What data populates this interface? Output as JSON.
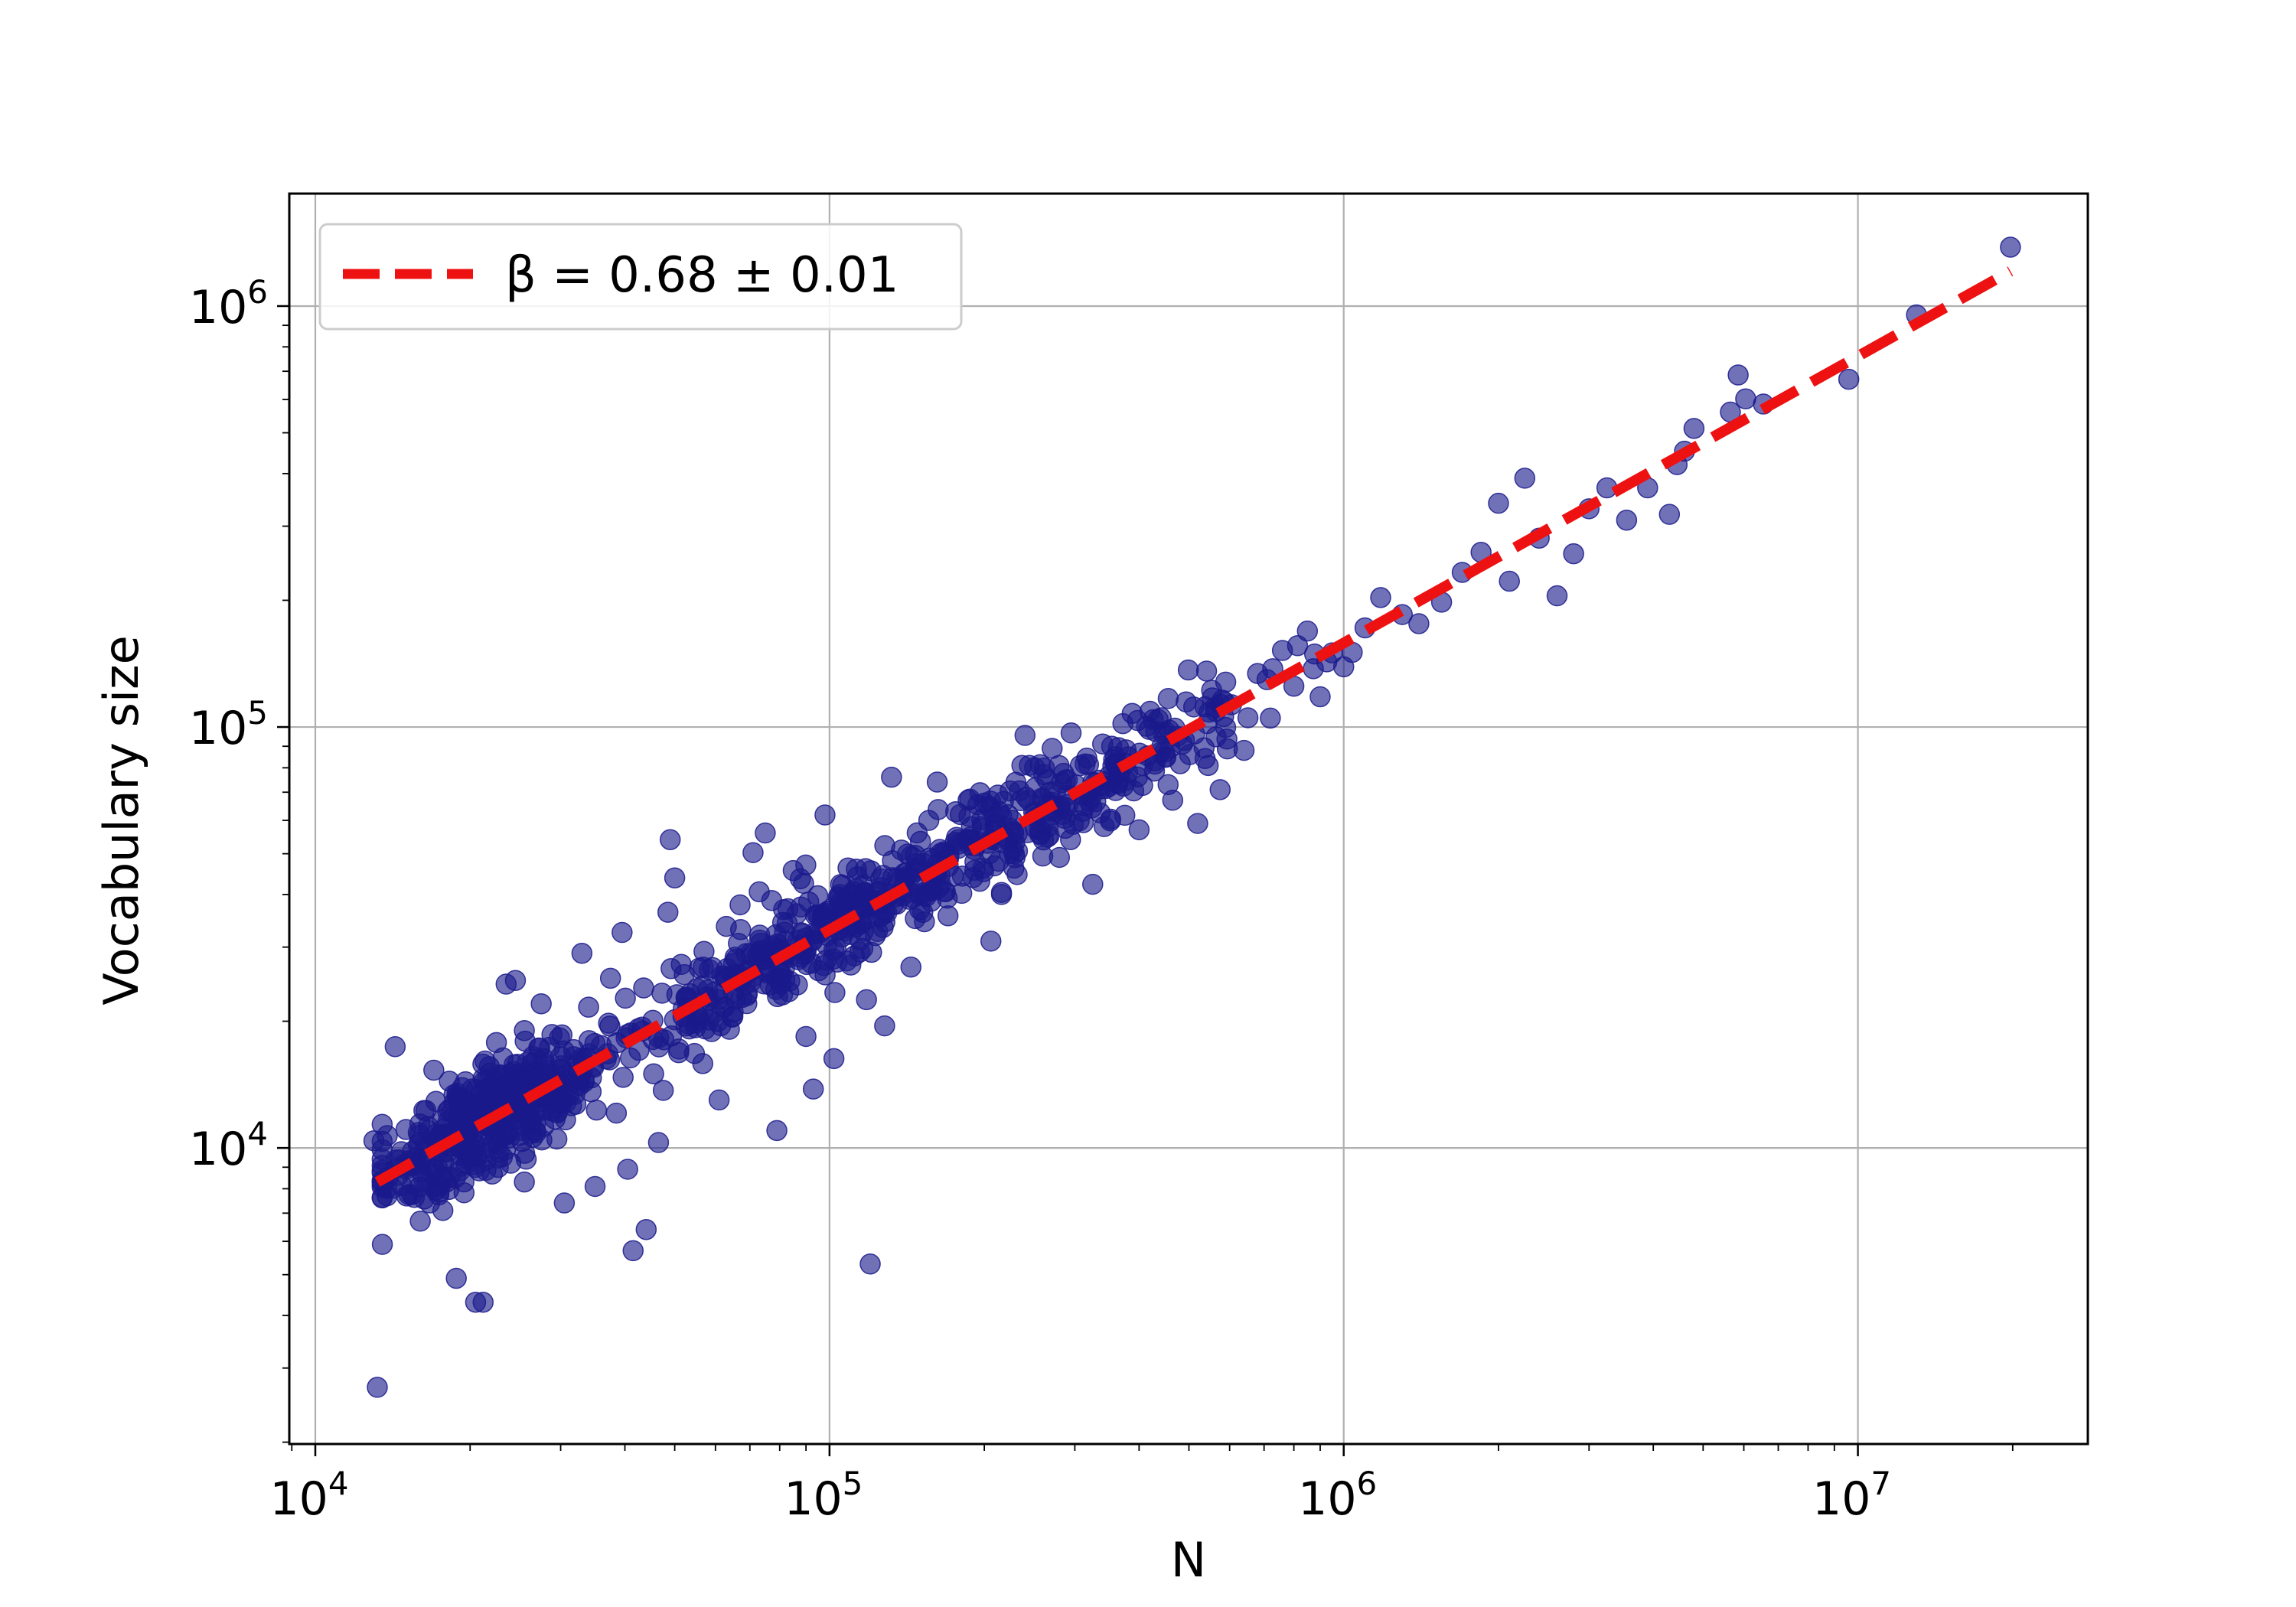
{
  "chart_data": {
    "type": "scatter",
    "title": "",
    "xlabel": "N",
    "ylabel": "Vocabulary size",
    "xscale": "log",
    "yscale": "log",
    "xlim": [
      8900,
      28000000
    ],
    "ylim": [
      1980,
      1850000
    ],
    "grid": true,
    "legend_position": "top-left",
    "x_ticks": [
      {
        "base": "10",
        "exp": "4",
        "value": 10000
      },
      {
        "base": "10",
        "exp": "5",
        "value": 100000
      },
      {
        "base": "10",
        "exp": "6",
        "value": 1000000
      },
      {
        "base": "10",
        "exp": "7",
        "value": 10000000
      }
    ],
    "y_ticks": [
      {
        "base": "10",
        "exp": "4",
        "value": 10000
      },
      {
        "base": "10",
        "exp": "5",
        "value": 100000
      },
      {
        "base": "10",
        "exp": "6",
        "value": 1000000
      }
    ],
    "fit": {
      "label": "β = 0.68 ± 0.01",
      "beta": 0.68,
      "x_range": [
        13200,
        19800000
      ],
      "y_range": [
        8300,
        1210000
      ],
      "color": "#ee1111",
      "style": "dashed"
    },
    "series": [
      {
        "marker_color": "#1a1a8c",
        "points": [
          [
            13200,
            2700
          ],
          [
            13500,
            5900
          ],
          [
            14300,
            17400
          ],
          [
            13000,
            10400
          ],
          [
            13800,
            10700
          ],
          [
            14700,
            9800
          ],
          [
            16000,
            6700
          ],
          [
            16600,
            11000
          ],
          [
            17000,
            15300
          ],
          [
            17500,
            8100
          ],
          [
            18000,
            8300
          ],
          [
            18800,
            4900
          ],
          [
            20500,
            4300
          ],
          [
            21200,
            4300
          ],
          [
            19500,
            9900
          ],
          [
            20600,
            12400
          ],
          [
            21800,
            15600
          ],
          [
            22500,
            17800
          ],
          [
            23500,
            24500
          ],
          [
            24500,
            25000
          ],
          [
            25500,
            19000
          ],
          [
            26500,
            16500
          ],
          [
            24000,
            9200
          ],
          [
            25500,
            8300
          ],
          [
            27500,
            22000
          ],
          [
            28500,
            14000
          ],
          [
            29500,
            10500
          ],
          [
            30500,
            7400
          ],
          [
            31500,
            12600
          ],
          [
            33000,
            29000
          ],
          [
            34000,
            21600
          ],
          [
            35000,
            8100
          ],
          [
            36000,
            17500
          ],
          [
            37500,
            25300
          ],
          [
            38500,
            12100
          ],
          [
            39500,
            32500
          ],
          [
            40500,
            8900
          ],
          [
            41500,
            5700
          ],
          [
            42500,
            19200
          ],
          [
            43500,
            24000
          ],
          [
            44000,
            6400
          ],
          [
            45500,
            15000
          ],
          [
            46500,
            10300
          ],
          [
            47500,
            13700
          ],
          [
            48500,
            36300
          ],
          [
            49000,
            54000
          ],
          [
            50000,
            43800
          ],
          [
            51500,
            27300
          ],
          [
            53000,
            21500
          ],
          [
            55000,
            19800
          ],
          [
            57000,
            29300
          ],
          [
            59000,
            18900
          ],
          [
            61000,
            13000
          ],
          [
            63000,
            33600
          ],
          [
            65000,
            23500
          ],
          [
            67000,
            37800
          ],
          [
            69000,
            26200
          ],
          [
            71000,
            50300
          ],
          [
            73000,
            40600
          ],
          [
            75000,
            56000
          ],
          [
            77000,
            30200
          ],
          [
            79000,
            11000
          ],
          [
            81000,
            23100
          ],
          [
            83000,
            37000
          ],
          [
            85000,
            45600
          ],
          [
            87000,
            28000
          ],
          [
            90000,
            18400
          ],
          [
            93000,
            13800
          ],
          [
            96000,
            32500
          ],
          [
            98000,
            61800
          ],
          [
            102000,
            16300
          ],
          [
            106000,
            42000
          ],
          [
            110000,
            27200
          ],
          [
            115000,
            34300
          ],
          [
            120000,
            5300
          ],
          [
            118000,
            22500
          ],
          [
            124000,
            38000
          ],
          [
            128000,
            19500
          ],
          [
            132000,
            76000
          ],
          [
            138000,
            51000
          ],
          [
            144000,
            26900
          ],
          [
            150000,
            40000
          ],
          [
            156000,
            60000
          ],
          [
            162000,
            74000
          ],
          [
            170000,
            35600
          ],
          [
            178000,
            54000
          ],
          [
            186000,
            67000
          ],
          [
            196000,
            43000
          ],
          [
            206000,
            31000
          ],
          [
            216000,
            40000
          ],
          [
            228000,
            56000
          ],
          [
            240000,
            95500
          ],
          [
            252000,
            61000
          ],
          [
            265000,
            75000
          ],
          [
            280000,
            49000
          ],
          [
            295000,
            96800
          ],
          [
            310000,
            69000
          ],
          [
            325000,
            42300
          ],
          [
            342000,
            58000
          ],
          [
            360000,
            85000
          ],
          [
            380000,
            78000
          ],
          [
            400000,
            57000
          ],
          [
            420000,
            109000
          ],
          [
            440000,
            87000
          ],
          [
            465000,
            67000
          ],
          [
            490000,
            93000
          ],
          [
            520000,
            59000
          ],
          [
            545000,
            81000
          ],
          [
            575000,
            71000
          ],
          [
            605000,
            113000
          ],
          [
            640000,
            88000
          ],
          [
            680000,
            134000
          ],
          [
            720000,
            105000
          ],
          [
            760000,
            152000
          ],
          [
            800000,
            125000
          ],
          [
            850000,
            169000
          ],
          [
            900000,
            118000
          ],
          [
            950000,
            150000
          ],
          [
            1000000,
            139000
          ],
          [
            1100000,
            172000
          ],
          [
            1180000,
            203000
          ],
          [
            1300000,
            185000
          ],
          [
            1400000,
            176000
          ],
          [
            1550000,
            198000
          ],
          [
            1700000,
            233000
          ],
          [
            1850000,
            260000
          ],
          [
            2000000,
            340000
          ],
          [
            2100000,
            222000
          ],
          [
            2250000,
            390000
          ],
          [
            2400000,
            281000
          ],
          [
            2600000,
            205000
          ],
          [
            2800000,
            258000
          ],
          [
            3000000,
            330000
          ],
          [
            3250000,
            370000
          ],
          [
            3550000,
            310000
          ],
          [
            3900000,
            370000
          ],
          [
            4300000,
            320000
          ],
          [
            4450000,
            420000
          ],
          [
            4600000,
            452000
          ],
          [
            4800000,
            512000
          ],
          [
            5650000,
            560000
          ],
          [
            5850000,
            686000
          ],
          [
            6050000,
            602000
          ],
          [
            6550000,
            585000
          ],
          [
            9600000,
            670000
          ],
          [
            13000000,
            953000
          ],
          [
            19800000,
            1380000
          ]
        ]
      }
    ]
  }
}
